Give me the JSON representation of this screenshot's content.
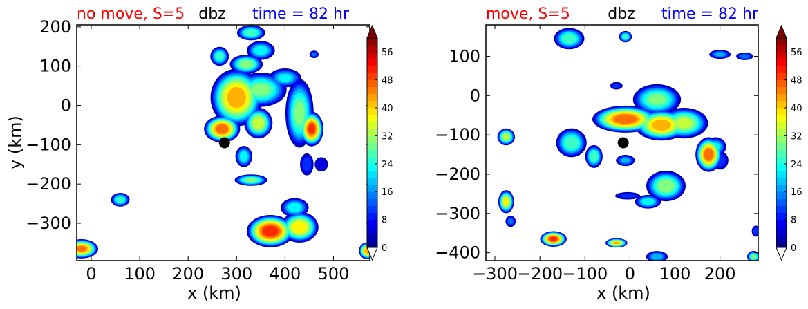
{
  "chart_data": [
    {
      "type": "contour",
      "title_left": "no move, S=5",
      "title_center": "dbz",
      "title_right": "time = 82 hr",
      "title_left_color": "#ff0000",
      "title_right_color": "#0000ff",
      "xlabel": "x (km)",
      "ylabel": "y (km)",
      "xlim": [
        -30,
        575
      ],
      "ylim": [
        -395,
        205
      ],
      "xticks": [
        0,
        100,
        200,
        300,
        400,
        500
      ],
      "yticks": [
        200,
        100,
        0,
        -100,
        -200,
        -300
      ],
      "marker": {
        "x": 275,
        "y": -95,
        "color": "#000000"
      },
      "colorbar": {
        "min": 0,
        "max": 60,
        "step": 2,
        "ticks": [
          0,
          8,
          16,
          24,
          32,
          40,
          48,
          56
        ],
        "colormap": "jet",
        "extend": "both"
      },
      "cells": [
        {
          "x": 300,
          "y": 20,
          "rx": 55,
          "ry": 75,
          "peak": 44
        },
        {
          "x": 350,
          "y": 40,
          "rx": 55,
          "ry": 45,
          "peak": 30
        },
        {
          "x": 400,
          "y": 70,
          "rx": 35,
          "ry": 25,
          "peak": 22
        },
        {
          "x": 270,
          "y": -60,
          "rx": 38,
          "ry": 35,
          "peak": 48
        },
        {
          "x": 345,
          "y": -45,
          "rx": 30,
          "ry": 40,
          "peak": 36
        },
        {
          "x": 430,
          "y": -20,
          "rx": 30,
          "ry": 90,
          "peak": 30
        },
        {
          "x": 455,
          "y": -60,
          "rx": 25,
          "ry": 45,
          "peak": 50
        },
        {
          "x": 320,
          "y": 105,
          "rx": 35,
          "ry": 25,
          "peak": 32
        },
        {
          "x": 350,
          "y": 140,
          "rx": 30,
          "ry": 25,
          "peak": 24
        },
        {
          "x": 330,
          "y": 185,
          "rx": 30,
          "ry": 20,
          "peak": 28
        },
        {
          "x": 265,
          "y": 125,
          "rx": 20,
          "ry": 25,
          "peak": 26
        },
        {
          "x": 460,
          "y": 130,
          "rx": 10,
          "ry": 10,
          "peak": 14
        },
        {
          "x": 330,
          "y": -190,
          "rx": 35,
          "ry": 15,
          "peak": 30
        },
        {
          "x": 315,
          "y": -130,
          "rx": 18,
          "ry": 28,
          "peak": 24
        },
        {
          "x": 445,
          "y": -150,
          "rx": 15,
          "ry": 30,
          "peak": 12
        },
        {
          "x": 475,
          "y": -150,
          "rx": 15,
          "ry": 20,
          "peak": 8
        },
        {
          "x": 60,
          "y": -240,
          "rx": 20,
          "ry": 18,
          "peak": 26
        },
        {
          "x": 370,
          "y": -320,
          "rx": 50,
          "ry": 42,
          "peak": 52
        },
        {
          "x": 430,
          "y": -310,
          "rx": 40,
          "ry": 40,
          "peak": 40
        },
        {
          "x": 420,
          "y": -260,
          "rx": 30,
          "ry": 25,
          "peak": 24
        },
        {
          "x": -20,
          "y": -365,
          "rx": 35,
          "ry": 25,
          "peak": 46
        },
        {
          "x": 570,
          "y": -370,
          "rx": 18,
          "ry": 22,
          "peak": 44
        }
      ]
    },
    {
      "type": "contour",
      "title_left": "move, S=5",
      "title_center": "dbz",
      "title_right": "time = 82 hr",
      "title_left_color": "#ff0000",
      "title_right_color": "#0000ff",
      "xlabel": "x (km)",
      "ylabel": "",
      "xlim": [
        -320,
        285
      ],
      "ylim": [
        -420,
        180
      ],
      "xticks": [
        -300,
        -200,
        -100,
        0,
        100,
        200
      ],
      "yticks": [
        100,
        0,
        -100,
        -200,
        -300,
        -400
      ],
      "marker": {
        "x": -15,
        "y": -120,
        "color": "#000000"
      },
      "colorbar": {
        "min": 0,
        "max": 60,
        "step": 2,
        "ticks": [
          0,
          8,
          16,
          24,
          32,
          40,
          48,
          56
        ],
        "colormap": "jet",
        "extend": "both"
      },
      "cells": [
        {
          "x": -10,
          "y": -60,
          "rx": 75,
          "ry": 35,
          "peak": 48
        },
        {
          "x": 70,
          "y": -75,
          "rx": 60,
          "ry": 40,
          "peak": 44
        },
        {
          "x": 60,
          "y": -10,
          "rx": 55,
          "ry": 40,
          "peak": 30
        },
        {
          "x": 120,
          "y": -70,
          "rx": 55,
          "ry": 40,
          "peak": 34
        },
        {
          "x": 175,
          "y": -150,
          "rx": 30,
          "ry": 45,
          "peak": 48
        },
        {
          "x": 190,
          "y": -130,
          "rx": 25,
          "ry": 25,
          "peak": 22
        },
        {
          "x": 80,
          "y": -230,
          "rx": 45,
          "ry": 40,
          "peak": 32
        },
        {
          "x": 40,
          "y": -270,
          "rx": 30,
          "ry": 18,
          "peak": 24
        },
        {
          "x": -130,
          "y": -120,
          "rx": 35,
          "ry": 38,
          "peak": 28
        },
        {
          "x": -80,
          "y": -155,
          "rx": 20,
          "ry": 30,
          "peak": 28
        },
        {
          "x": -275,
          "y": -105,
          "rx": 20,
          "ry": 22,
          "peak": 34
        },
        {
          "x": -275,
          "y": -270,
          "rx": 18,
          "ry": 30,
          "peak": 38
        },
        {
          "x": -265,
          "y": -320,
          "rx": 12,
          "ry": 15,
          "peak": 14
        },
        {
          "x": -170,
          "y": -365,
          "rx": 30,
          "ry": 20,
          "peak": 50
        },
        {
          "x": -30,
          "y": -375,
          "rx": 25,
          "ry": 12,
          "peak": 42
        },
        {
          "x": -135,
          "y": 145,
          "rx": 35,
          "ry": 28,
          "peak": 28
        },
        {
          "x": -10,
          "y": 150,
          "rx": 15,
          "ry": 15,
          "peak": 26
        },
        {
          "x": 200,
          "y": 105,
          "rx": 25,
          "ry": 12,
          "peak": 18
        },
        {
          "x": 255,
          "y": 100,
          "rx": 20,
          "ry": 10,
          "peak": 16
        },
        {
          "x": -10,
          "y": -165,
          "rx": 22,
          "ry": 15,
          "peak": 18
        },
        {
          "x": -5,
          "y": -255,
          "rx": 30,
          "ry": 10,
          "peak": 10
        },
        {
          "x": 60,
          "y": -410,
          "rx": 25,
          "ry": 15,
          "peak": 20
        },
        {
          "x": 280,
          "y": -345,
          "rx": 10,
          "ry": 15,
          "peak": 12
        },
        {
          "x": 275,
          "y": -410,
          "rx": 15,
          "ry": 15,
          "peak": 30
        },
        {
          "x": 200,
          "y": -165,
          "rx": 20,
          "ry": 25,
          "peak": 12
        },
        {
          "x": -30,
          "y": 25,
          "rx": 15,
          "ry": 10,
          "peak": 10
        }
      ]
    }
  ]
}
